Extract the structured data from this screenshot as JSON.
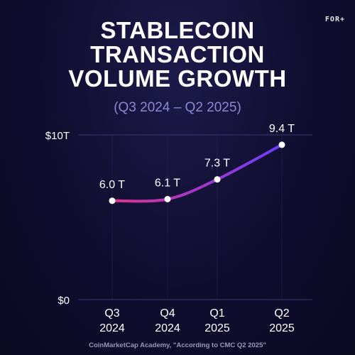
{
  "logo": {
    "text": "FOR+"
  },
  "title_lines": [
    "STABLECOIN",
    "TRANSACTION",
    "VOLUME GROWTH"
  ],
  "source": "CoinMarketCap Academy, \"According to CMC Q2 2025\"",
  "colors": {
    "line_start": "#e0338f",
    "line_end": "#6a3dff",
    "grid": "#3a3770",
    "text": "#ffffff"
  },
  "chart_data": {
    "type": "line",
    "title": "STABLECOIN TRANSACTION VOLUME GROWTH",
    "subtitle": "(Q3 2024 – Q2 2025)",
    "categories": [
      [
        "Q3",
        "2024"
      ],
      [
        "Q4",
        "2024"
      ],
      [
        "Q1",
        "2025"
      ],
      [
        "Q2",
        "2025"
      ]
    ],
    "values": [
      6.0,
      6.1,
      7.3,
      9.4
    ],
    "data_labels": [
      "6.0 T",
      "6.1 T",
      "7.3 T",
      "9.4 T"
    ],
    "y_ticks": [
      {
        "value": 0,
        "label": "$0"
      },
      {
        "value": 10,
        "label": "$10T"
      }
    ],
    "ylim": [
      0,
      10
    ],
    "yaxis_value_at_bottom": 0,
    "grid": true
  }
}
